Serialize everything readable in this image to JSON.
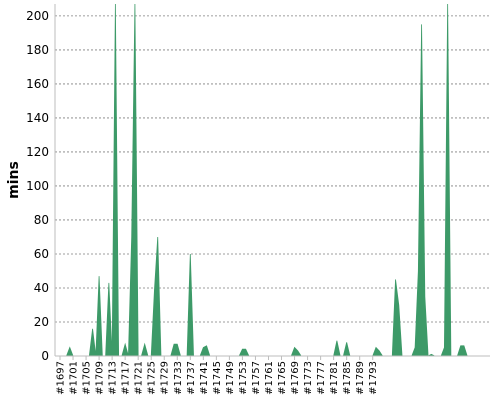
{
  "chart_data": {
    "type": "area",
    "title": "",
    "xlabel": "",
    "ylabel": "mins",
    "ylim": [
      0,
      207
    ],
    "yticks": [
      0,
      20,
      40,
      60,
      80,
      100,
      120,
      140,
      160,
      180,
      200
    ],
    "grid": true,
    "legend": "none",
    "series_color": "#3d9a68",
    "x_tick_labels": [
      "#1697",
      "#1701",
      "#1705",
      "#1709",
      "#1713",
      "#1717",
      "#1721",
      "#1725",
      "#1729",
      "#1733",
      "#1737",
      "#1741",
      "#1745",
      "#1749",
      "#1753",
      "#1757",
      "#1761",
      "#1765",
      "#1769",
      "#1773",
      "#1777",
      "#1781",
      "#1785",
      "#1789",
      "#1793"
    ],
    "x_start": 1697,
    "series": [
      {
        "values": [
          0,
          0,
          0,
          5,
          0,
          0,
          0,
          0,
          0,
          0,
          16,
          0,
          47,
          0,
          0,
          43,
          0,
          250,
          0,
          0,
          7,
          0,
          70,
          250,
          0,
          0,
          7,
          0,
          0,
          39,
          70,
          0,
          0,
          0,
          0,
          7,
          7,
          0,
          0,
          0,
          60,
          0,
          0,
          0,
          5,
          6,
          0,
          0,
          0,
          0,
          0,
          0,
          0,
          0,
          0,
          0,
          4,
          4,
          0,
          0,
          0,
          0,
          0,
          0,
          0,
          0,
          0,
          0,
          0,
          0,
          0,
          0,
          5,
          3,
          0,
          0,
          0,
          0,
          0,
          0,
          0,
          0,
          0,
          0,
          0,
          9,
          0,
          0,
          8,
          0,
          0,
          0,
          0,
          0,
          0,
          0,
          0,
          5,
          3,
          0,
          0,
          0,
          0,
          45,
          30,
          0,
          0,
          0,
          0,
          5,
          50,
          195,
          35,
          0,
          1,
          0,
          0,
          0,
          5,
          250,
          0,
          0,
          0,
          6,
          6,
          0,
          0,
          0,
          0,
          0,
          0,
          0,
          0
        ]
      }
    ]
  }
}
